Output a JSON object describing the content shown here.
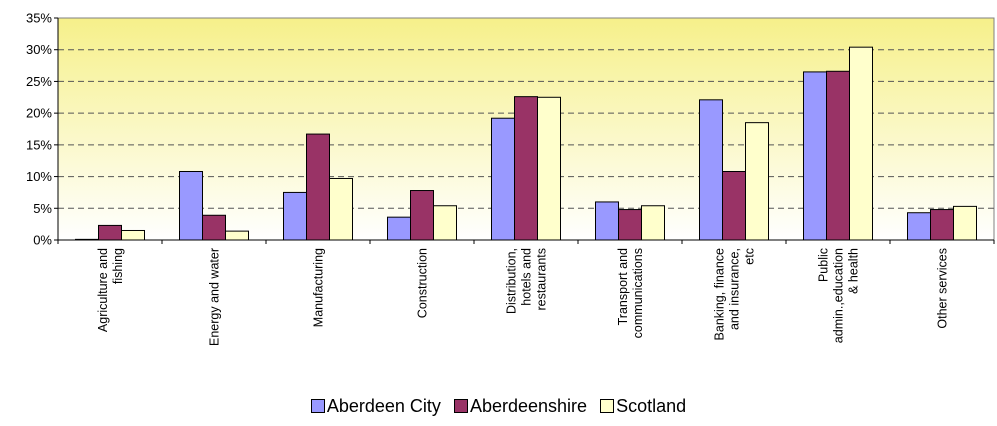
{
  "chart_data": {
    "type": "bar",
    "title": "",
    "xlabel": "",
    "ylabel": "",
    "ylim": [
      0,
      35
    ],
    "y_ticks": [
      "0%",
      "5%",
      "10%",
      "15%",
      "20%",
      "25%",
      "30%",
      "35%"
    ],
    "grid": true,
    "legend_position": "bottom",
    "categories": [
      [
        "Agriculture and",
        "fishing"
      ],
      [
        "Energy and water"
      ],
      [
        "Manufacturing"
      ],
      [
        "Construction"
      ],
      [
        "Distribution,",
        "hotels and",
        "restaurants"
      ],
      [
        "Transport and",
        "communications"
      ],
      [
        "Banking, finance",
        "and insurance,",
        "etc"
      ],
      [
        "Public",
        "admin.,education",
        "& health"
      ],
      [
        "Other services"
      ]
    ],
    "series": [
      {
        "name": "Aberdeen City",
        "color": "#9999ff",
        "values": [
          0.1,
          10.8,
          7.5,
          3.6,
          19.2,
          6.0,
          22.1,
          26.5,
          4.3
        ]
      },
      {
        "name": "Aberdeenshire",
        "color": "#993366",
        "values": [
          2.3,
          3.9,
          16.7,
          7.8,
          22.6,
          4.8,
          10.8,
          26.6,
          4.8
        ]
      },
      {
        "name": "Scotland",
        "color": "#ffffcc",
        "values": [
          1.5,
          1.4,
          9.7,
          5.4,
          22.5,
          5.4,
          18.5,
          30.4,
          5.3
        ]
      }
    ]
  }
}
